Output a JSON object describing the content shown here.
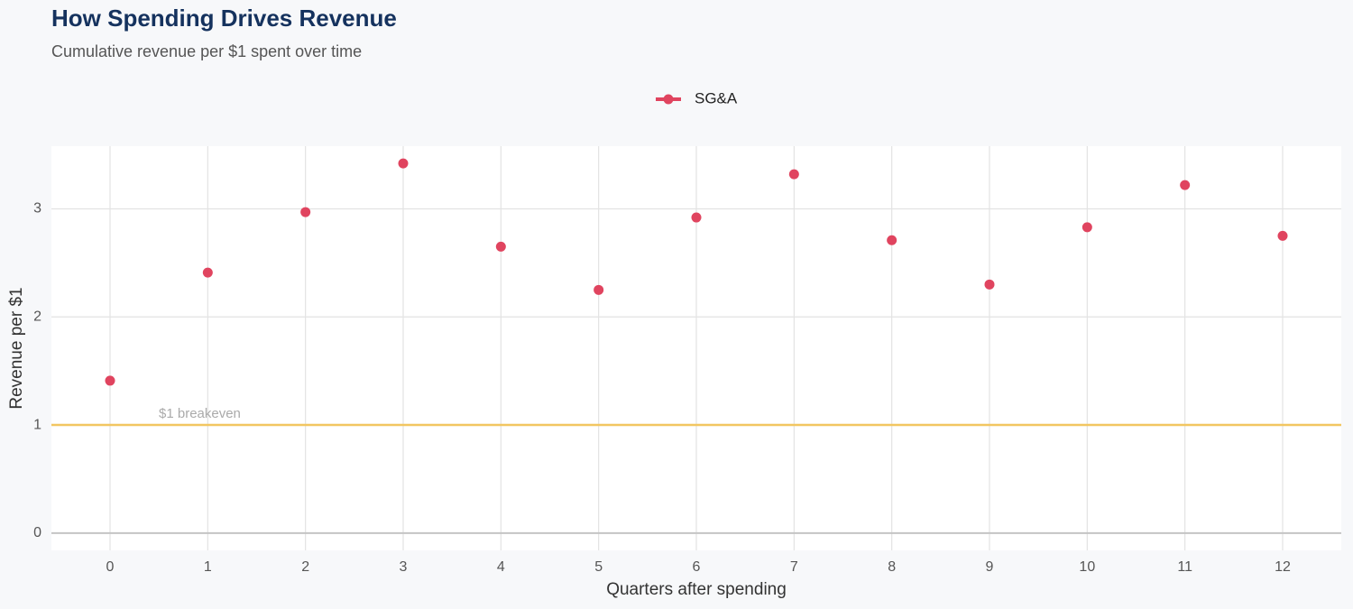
{
  "chart_data": {
    "type": "line",
    "title": "How Spending Drives Revenue",
    "subtitle": "Cumulative revenue per $1 spent over time",
    "x_label": "Quarters after spending",
    "y_label": "Revenue per $1",
    "x": [
      0,
      1,
      2,
      3,
      4,
      5,
      6,
      7,
      8,
      9,
      10,
      11,
      12
    ],
    "series": [
      {
        "name": "SG&A",
        "color": "#e0445f",
        "values": [
          1.41,
          2.41,
          2.97,
          3.42,
          2.65,
          2.25,
          2.92,
          3.32,
          2.71,
          2.3,
          2.83,
          3.22,
          2.75
        ]
      }
    ],
    "xlim": [
      -0.6,
      12.6
    ],
    "xticks": [
      0,
      1,
      2,
      3,
      4,
      5,
      6,
      7,
      8,
      9,
      10,
      11,
      12
    ],
    "ylim": [
      -0.16,
      3.58
    ],
    "yticks": [
      0,
      1,
      2,
      3
    ],
    "grid": true,
    "legend": "top",
    "reference_line": {
      "value": 1,
      "label": "$1 breakeven",
      "color": "#f2c661"
    }
  }
}
